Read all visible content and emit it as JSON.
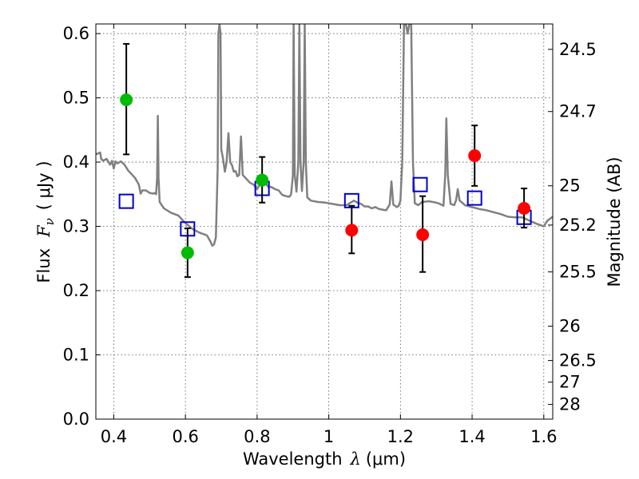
{
  "chart_data": {
    "type": "scatter",
    "title": "",
    "xlabel": "Wavelength",
    "xlabel_symbol": "λ",
    "xlabel_unit": "(μm)",
    "ylabel": "Flux",
    "ylabel_symbol": "F",
    "ylabel_subscript": "ν",
    "ylabel_unit": "( μJy )",
    "ylabel_right": "Magnitude (AB)",
    "xlim": [
      0.35,
      1.625
    ],
    "ylim": [
      0.0,
      0.615
    ],
    "grid": true,
    "x_ticks": [
      {
        "value": 0.4,
        "label": "0.4"
      },
      {
        "value": 0.6,
        "label": "0.6"
      },
      {
        "value": 0.8,
        "label": "0.8"
      },
      {
        "value": 1.0,
        "label": "1"
      },
      {
        "value": 1.2,
        "label": "1.2"
      },
      {
        "value": 1.4,
        "label": "1.4"
      },
      {
        "value": 1.6,
        "label": "1.6"
      }
    ],
    "y_ticks": [
      {
        "value": 0.0,
        "label": "0.0"
      },
      {
        "value": 0.1,
        "label": "0.1"
      },
      {
        "value": 0.2,
        "label": "0.2"
      },
      {
        "value": 0.3,
        "label": "0.3"
      },
      {
        "value": 0.4,
        "label": "0.4"
      },
      {
        "value": 0.5,
        "label": "0.5"
      },
      {
        "value": 0.6,
        "label": "0.6"
      }
    ],
    "mag_ticks": [
      {
        "value": 24.5,
        "label": "24.5"
      },
      {
        "value": 24.7,
        "label": "24.7"
      },
      {
        "value": 25.0,
        "label": "25"
      },
      {
        "value": 25.2,
        "label": "25.2"
      },
      {
        "value": 25.5,
        "label": "25.5"
      },
      {
        "value": 26.0,
        "label": "26"
      },
      {
        "value": 26.5,
        "label": "26.5"
      },
      {
        "value": 27.0,
        "label": "27"
      },
      {
        "value": 28.0,
        "label": "28"
      }
    ],
    "colors": {
      "observed_optical": "#00bb00",
      "observed_nir": "#ff0000",
      "model_box": "#0000cc",
      "spectrum": "#808080",
      "errorbar": "#000000",
      "grid": "#555555"
    },
    "series": [
      {
        "name": "observed-optical",
        "marker": "circle",
        "points": [
          {
            "x": 0.435,
            "y": 0.497,
            "yerr_low": 0.085,
            "yerr_high": 0.087
          },
          {
            "x": 0.606,
            "y": 0.259,
            "yerr_low": 0.038,
            "yerr_high": 0.038
          },
          {
            "x": 0.814,
            "y": 0.372,
            "yerr_low": 0.035,
            "yerr_high": 0.036
          }
        ]
      },
      {
        "name": "observed-nir",
        "marker": "circle",
        "points": [
          {
            "x": 1.064,
            "y": 0.294,
            "yerr_low": 0.036,
            "yerr_high": 0.038
          },
          {
            "x": 1.262,
            "y": 0.287,
            "yerr_low": 0.058,
            "yerr_high": 0.06
          },
          {
            "x": 1.407,
            "y": 0.41,
            "yerr_low": 0.047,
            "yerr_high": 0.047
          },
          {
            "x": 1.545,
            "y": 0.328,
            "yerr_low": 0.03,
            "yerr_high": 0.031
          }
        ]
      },
      {
        "name": "model-synthetic-photometry",
        "marker": "square",
        "points": [
          {
            "x": 0.435,
            "y": 0.339
          },
          {
            "x": 0.606,
            "y": 0.296
          },
          {
            "x": 0.814,
            "y": 0.359
          },
          {
            "x": 1.064,
            "y": 0.34
          },
          {
            "x": 1.255,
            "y": 0.365
          },
          {
            "x": 1.407,
            "y": 0.344
          },
          {
            "x": 1.545,
            "y": 0.314
          }
        ]
      }
    ],
    "spectrum": [
      [
        0.35,
        0.412
      ],
      [
        0.362,
        0.415
      ],
      [
        0.365,
        0.405
      ],
      [
        0.37,
        0.402
      ],
      [
        0.38,
        0.405
      ],
      [
        0.39,
        0.396
      ],
      [
        0.395,
        0.402
      ],
      [
        0.4,
        0.39
      ],
      [
        0.405,
        0.401
      ],
      [
        0.41,
        0.398
      ],
      [
        0.42,
        0.401
      ],
      [
        0.43,
        0.396
      ],
      [
        0.44,
        0.387
      ],
      [
        0.45,
        0.381
      ],
      [
        0.46,
        0.375
      ],
      [
        0.47,
        0.365
      ],
      [
        0.475,
        0.351
      ],
      [
        0.48,
        0.356
      ],
      [
        0.49,
        0.356
      ],
      [
        0.5,
        0.352
      ],
      [
        0.51,
        0.351
      ],
      [
        0.515,
        0.352
      ],
      [
        0.518,
        0.35
      ],
      [
        0.521,
        0.375
      ],
      [
        0.523,
        0.472
      ],
      [
        0.525,
        0.375
      ],
      [
        0.528,
        0.338
      ],
      [
        0.54,
        0.328
      ],
      [
        0.56,
        0.321
      ],
      [
        0.58,
        0.317
      ],
      [
        0.6,
        0.305
      ],
      [
        0.62,
        0.296
      ],
      [
        0.64,
        0.29
      ],
      [
        0.66,
        0.286
      ],
      [
        0.67,
        0.276
      ],
      [
        0.675,
        0.27
      ],
      [
        0.68,
        0.272
      ],
      [
        0.685,
        0.283
      ],
      [
        0.69,
        0.39
      ],
      [
        0.692,
        0.6
      ],
      [
        0.695,
        0.615
      ],
      [
        0.698,
        0.6
      ],
      [
        0.7,
        0.42
      ],
      [
        0.705,
        0.405
      ],
      [
        0.71,
        0.385
      ],
      [
        0.715,
        0.4
      ],
      [
        0.72,
        0.445
      ],
      [
        0.725,
        0.4
      ],
      [
        0.73,
        0.395
      ],
      [
        0.735,
        0.385
      ],
      [
        0.74,
        0.386
      ],
      [
        0.745,
        0.378
      ],
      [
        0.75,
        0.38
      ],
      [
        0.755,
        0.44
      ],
      [
        0.76,
        0.38
      ],
      [
        0.77,
        0.374
      ],
      [
        0.78,
        0.368
      ],
      [
        0.79,
        0.365
      ],
      [
        0.8,
        0.358
      ],
      [
        0.81,
        0.367
      ],
      [
        0.82,
        0.372
      ],
      [
        0.83,
        0.362
      ],
      [
        0.84,
        0.361
      ],
      [
        0.85,
        0.358
      ],
      [
        0.86,
        0.356
      ],
      [
        0.87,
        0.349
      ],
      [
        0.88,
        0.347
      ],
      [
        0.89,
        0.346
      ],
      [
        0.895,
        0.35
      ],
      [
        0.9,
        0.38
      ],
      [
        0.902,
        0.615
      ],
      [
        0.905,
        0.38
      ],
      [
        0.91,
        0.354
      ],
      [
        0.915,
        0.4
      ],
      [
        0.918,
        0.615
      ],
      [
        0.921,
        0.4
      ],
      [
        0.925,
        0.355
      ],
      [
        0.93,
        0.4
      ],
      [
        0.933,
        0.615
      ],
      [
        0.936,
        0.4
      ],
      [
        0.94,
        0.345
      ],
      [
        0.95,
        0.34
      ],
      [
        0.97,
        0.338
      ],
      [
        0.99,
        0.337
      ],
      [
        1.01,
        0.335
      ],
      [
        1.03,
        0.333
      ],
      [
        1.05,
        0.333
      ],
      [
        1.07,
        0.34
      ],
      [
        1.08,
        0.337
      ],
      [
        1.09,
        0.335
      ],
      [
        1.1,
        0.331
      ],
      [
        1.11,
        0.331
      ],
      [
        1.12,
        0.328
      ],
      [
        1.13,
        0.33
      ],
      [
        1.14,
        0.327
      ],
      [
        1.15,
        0.326
      ],
      [
        1.16,
        0.325
      ],
      [
        1.17,
        0.334
      ],
      [
        1.175,
        0.37
      ],
      [
        1.18,
        0.334
      ],
      [
        1.19,
        0.33
      ],
      [
        1.195,
        0.332
      ],
      [
        1.2,
        0.34
      ],
      [
        1.205,
        0.4
      ],
      [
        1.21,
        0.615
      ],
      [
        1.215,
        0.615
      ],
      [
        1.22,
        0.6
      ],
      [
        1.225,
        0.615
      ],
      [
        1.23,
        0.615
      ],
      [
        1.235,
        0.4
      ],
      [
        1.24,
        0.336
      ],
      [
        1.25,
        0.333
      ],
      [
        1.26,
        0.338
      ],
      [
        1.28,
        0.339
      ],
      [
        1.3,
        0.337
      ],
      [
        1.31,
        0.335
      ],
      [
        1.32,
        0.332
      ],
      [
        1.325,
        0.38
      ],
      [
        1.328,
        0.468
      ],
      [
        1.332,
        0.38
      ],
      [
        1.34,
        0.335
      ],
      [
        1.35,
        0.333
      ],
      [
        1.355,
        0.34
      ],
      [
        1.36,
        0.358
      ],
      [
        1.365,
        0.34
      ],
      [
        1.37,
        0.338
      ],
      [
        1.38,
        0.333
      ],
      [
        1.4,
        0.33
      ],
      [
        1.42,
        0.327
      ],
      [
        1.44,
        0.325
      ],
      [
        1.46,
        0.322
      ],
      [
        1.48,
        0.319
      ],
      [
        1.5,
        0.315
      ],
      [
        1.52,
        0.314
      ],
      [
        1.54,
        0.314
      ],
      [
        1.56,
        0.309
      ],
      [
        1.58,
        0.304
      ],
      [
        1.59,
        0.302
      ],
      [
        1.6,
        0.3
      ],
      [
        1.61,
        0.309
      ],
      [
        1.625,
        0.315
      ]
    ]
  }
}
